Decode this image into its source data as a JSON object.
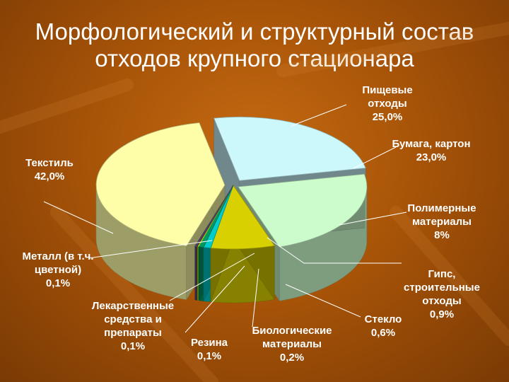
{
  "title_lines": [
    "Морфологический и структурный состав",
    "отходов крупного стационара"
  ],
  "chart_data": {
    "type": "pie",
    "title": "Морфологический и структурный состав отходов крупного стационара",
    "categories": [
      "Пищевые отходы",
      "Бумага, картон",
      "Полимерные материалы",
      "Гипс, строительные отходы",
      "Стекло",
      "Биологические материалы",
      "Резина",
      "Лекарственные средства и препараты",
      "Металл (в т.ч. цветной)",
      "Текстиль"
    ],
    "values": [
      25.0,
      23.0,
      8,
      0.9,
      0.6,
      0.2,
      0.1,
      0.1,
      0.1,
      42.0
    ],
    "labels": [
      {
        "lines": [
          "Пищевые",
          "отходы",
          "25,0%"
        ]
      },
      {
        "lines": [
          "Бумага, картон",
          "23,0%"
        ]
      },
      {
        "lines": [
          "Полимерные",
          "материалы",
          "8%"
        ]
      },
      {
        "lines": [
          "Гипс,",
          "строительные",
          "отходы",
          "0,9%"
        ]
      },
      {
        "lines": [
          "Стекло",
          "0,6%"
        ]
      },
      {
        "lines": [
          "Биологические",
          "материалы",
          "0,2%"
        ]
      },
      {
        "lines": [
          "Резина",
          "0,1%"
        ]
      },
      {
        "lines": [
          "Лекарственные",
          "средства и",
          "препараты",
          "0,1%"
        ]
      },
      {
        "lines": [
          "Металл (в т.ч.",
          "цветной)",
          "0,1%"
        ]
      },
      {
        "lines": [
          "Текстиль",
          "42,0%"
        ]
      }
    ],
    "colors": [
      "#ccf8fc",
      "#ccfccc",
      "#d8d000",
      "#00cccc",
      "#009966",
      "#88ee22",
      "#cc0000",
      "#3366ff",
      "#666666",
      "#fefea8"
    ],
    "legend": "none"
  }
}
